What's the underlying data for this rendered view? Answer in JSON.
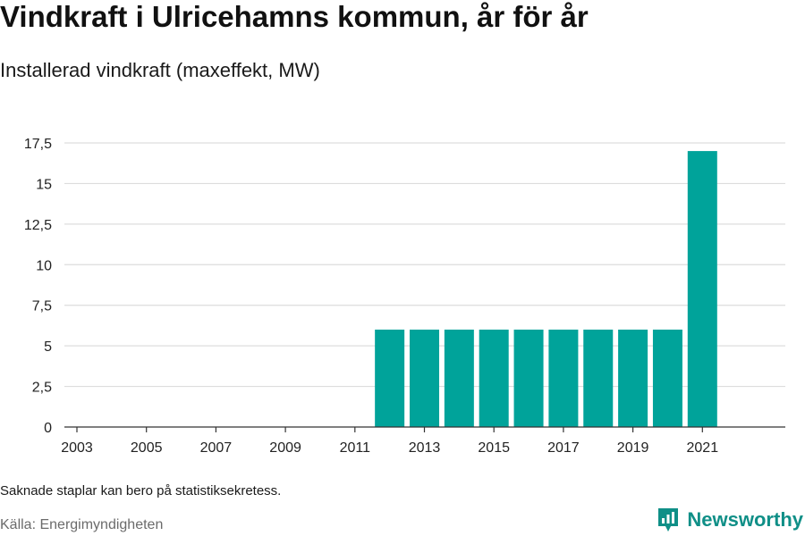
{
  "header": {
    "title": "Vindkraft i Ulricehamns kommun, år för år",
    "subtitle": "Installerad vindkraft (maxeffekt, MW)"
  },
  "footer": {
    "note": "Saknade staplar kan bero på statistiksekretess.",
    "source": "Källa: Energimyndigheten",
    "brand": "Newsworthy",
    "brand_icon": "bar-chart-logo-icon"
  },
  "colors": {
    "bar": "#00a39a",
    "brand": "#0f8f87",
    "grid": "#dddddd",
    "axis": "#333333"
  },
  "chart_data": {
    "type": "bar",
    "title": "Vindkraft i Ulricehamns kommun, år för år",
    "subtitle": "Installerad vindkraft (maxeffekt, MW)",
    "xlabel": "",
    "ylabel": "",
    "categories": [
      "2003",
      "2004",
      "2005",
      "2006",
      "2007",
      "2008",
      "2009",
      "2010",
      "2011",
      "2012",
      "2013",
      "2014",
      "2015",
      "2016",
      "2017",
      "2018",
      "2019",
      "2020",
      "2021"
    ],
    "values": [
      null,
      null,
      null,
      null,
      null,
      null,
      null,
      null,
      null,
      6,
      6,
      6,
      6,
      6,
      6,
      6,
      6,
      6,
      17
    ],
    "x_tick_labels": [
      "2003",
      "2005",
      "2007",
      "2009",
      "2011",
      "2013",
      "2015",
      "2017",
      "2019",
      "2021"
    ],
    "y_ticks": [
      0,
      2.5,
      5,
      7.5,
      10,
      12.5,
      15,
      17.5
    ],
    "y_tick_labels": [
      "0",
      "2,5",
      "5",
      "7,5",
      "10",
      "12,5",
      "15",
      "17,5"
    ],
    "ylim": [
      0,
      17.5
    ],
    "grid": "horizontal",
    "legend": "none"
  }
}
